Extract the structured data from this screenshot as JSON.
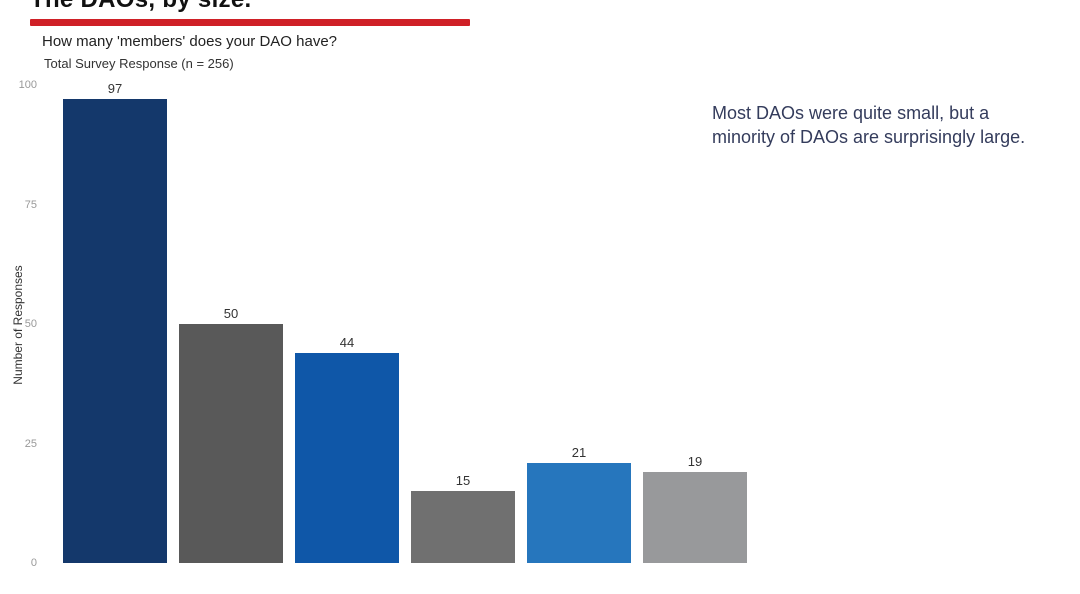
{
  "slide": {
    "title": "The DAOs, by size.",
    "accent_color": "#cf2027",
    "annotation": "Most DAOs were quite small, but a minority of DAOs are surprisingly large.",
    "annotation_color": "#343c5c"
  },
  "chart_data": {
    "type": "bar",
    "title": "How many 'members' does your DAO have?",
    "subtitle": "Total Survey Response (n = 256)",
    "ylabel": "Number of Responses",
    "xlabel": "",
    "values": [
      97,
      50,
      44,
      15,
      21,
      19
    ],
    "bar_colors": [
      "#14386b",
      "#595959",
      "#0f57a8",
      "#707070",
      "#2676bd",
      "#98999b"
    ],
    "value_labels_shown": true,
    "yticks": [
      0,
      25,
      50,
      75,
      100
    ],
    "ylim": [
      0,
      100
    ],
    "grid": false,
    "legend": "none",
    "note": "x-axis category labels are cropped out of view below the chart"
  }
}
